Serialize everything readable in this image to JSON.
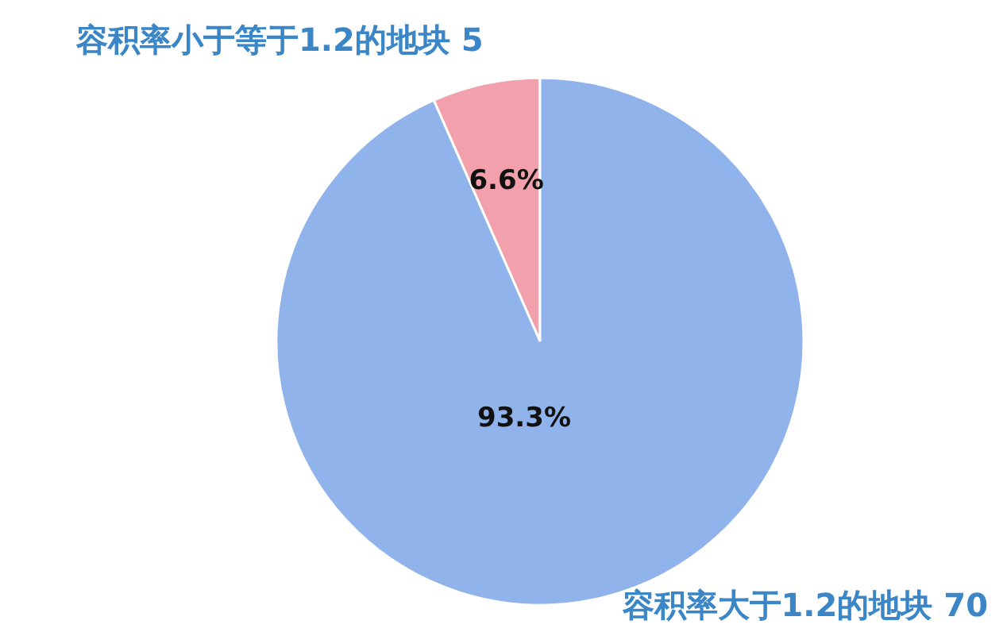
{
  "chart_data": {
    "type": "pie",
    "categories": [
      "容积率小于等于1.2的地块 5",
      "容积率大于1.2的地块 70"
    ],
    "values": [
      6.6,
      93.3
    ],
    "colors": [
      "#f2a1ac",
      "#8fb3ea"
    ],
    "value_labels": [
      "6.6%",
      "93.3%"
    ]
  }
}
